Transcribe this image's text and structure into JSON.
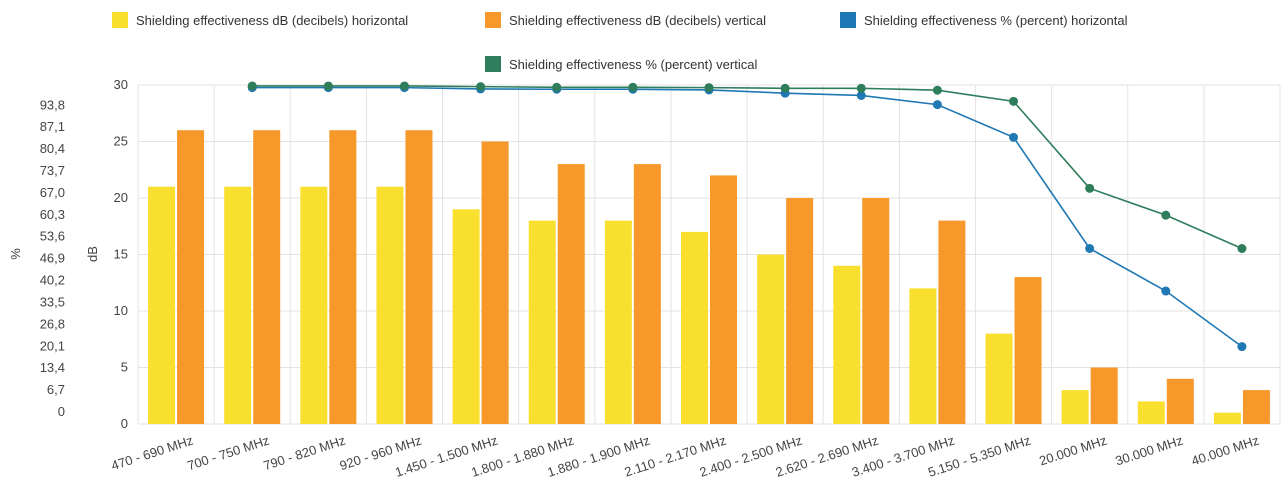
{
  "chart_data": {
    "type": "bar",
    "categories": [
      "470 - 690 MHz",
      "700 - 750 MHz",
      "790 - 820 MHz",
      "920 - 960 MHz",
      "1.450 - 1.500 MHz",
      "1.800 - 1.880 MHz",
      "1.880 - 1.900 MHz",
      "2.110 - 2.170 MHz",
      "2.400 - 2.500 MHz",
      "2.620 - 2.690 MHz",
      "3.400 - 3.700 MHz",
      "5.150 - 5.350 MHz",
      "20.000 MHz",
      "30.000 MHz",
      "40.000 MHz"
    ],
    "series": [
      {
        "name": "Shielding effectiveness dB (decibels) horizontal",
        "type": "bar",
        "axis": "dB",
        "color": "#f9e02e",
        "values": [
          21,
          21,
          21,
          21,
          19,
          18,
          18,
          17,
          15,
          14,
          12,
          8,
          3,
          2,
          1
        ]
      },
      {
        "name": "Shielding effectiveness dB (decibels) vertical",
        "type": "bar",
        "axis": "dB",
        "color": "#f7982a",
        "values": [
          26,
          26,
          26,
          26,
          25,
          23,
          23,
          22,
          20,
          20,
          18,
          13,
          5,
          4,
          3
        ]
      },
      {
        "name": "Shielding effectiveness % (percent) horizontal",
        "type": "line",
        "axis": "%",
        "color": "#1f78b4",
        "values": [
          null,
          99.2,
          99.2,
          99.2,
          98.8,
          98.7,
          98.7,
          98.5,
          97.5,
          96.8,
          94.0,
          84.0,
          50.0,
          37.0,
          20.0
        ]
      },
      {
        "name": "Shielding effectiveness % (percent) vertical",
        "type": "line",
        "axis": "%",
        "color": "#2e7d5b",
        "values": [
          null,
          99.7,
          99.7,
          99.7,
          99.5,
          99.3,
          99.3,
          99.2,
          99.0,
          99.0,
          98.4,
          95.0,
          68.4,
          60.2,
          50.0
        ]
      }
    ],
    "y_left_outer": {
      "label": "%",
      "ticks": [
        "93,8",
        "87,1",
        "80,4",
        "73,7",
        "67,0",
        "60,3",
        "53,6",
        "46,9",
        "40,2",
        "33,5",
        "26,8",
        "20,1",
        "13,4",
        "6,7",
        "0"
      ],
      "range": [
        0,
        100
      ]
    },
    "y_left_inner": {
      "label": "dB",
      "ticks": [
        "30",
        "25",
        "20",
        "15",
        "10",
        "5",
        "0"
      ],
      "range": [
        0,
        30
      ]
    },
    "grid": true,
    "legend_position": "top"
  }
}
